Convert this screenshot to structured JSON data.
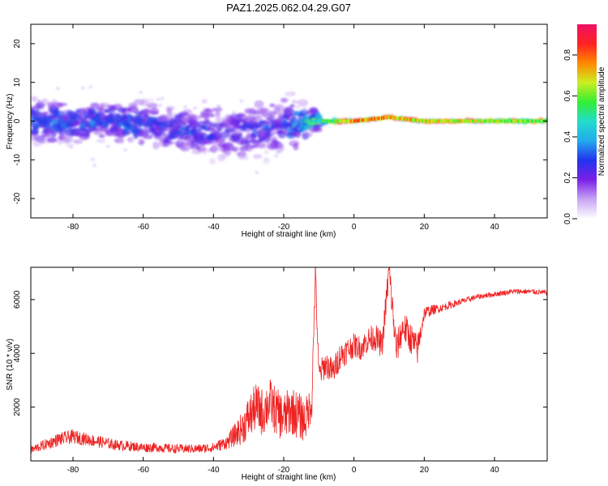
{
  "title": "PAZ1.2025.062.04.29.G07",
  "colors": {
    "snr_line": "#ee2222",
    "colormap": [
      "#ffffff",
      "#c7a5f4",
      "#7b1fe8",
      "#2233ee",
      "#22aaee",
      "#22ddcc",
      "#33ee33",
      "#ccee22",
      "#ff8800",
      "#ff2222",
      "#ee1166"
    ]
  },
  "chart_data": [
    {
      "type": "heatmap",
      "xlabel": "Height of straight line (km)",
      "ylabel": "Frequency (Hz)",
      "xlim": [
        -92,
        55
      ],
      "ylim": [
        -25,
        25
      ],
      "xticks": [
        -80,
        -60,
        -40,
        -20,
        0,
        20,
        40
      ],
      "yticks": [
        -20,
        -10,
        0,
        10,
        20
      ],
      "grid": false,
      "colorbar": {
        "label": "Normalized spectral amplitude",
        "range": [
          0.0,
          0.95
        ],
        "ticks": [
          0.0,
          0.2,
          0.4,
          0.6,
          0.8
        ]
      },
      "ridge": {
        "description_points": [
          {
            "x": -92,
            "center": 0,
            "spread": 4,
            "amp": 0.28
          },
          {
            "x": -70,
            "center": 0,
            "spread": 3,
            "amp": 0.3
          },
          {
            "x": -50,
            "center": -2,
            "spread": 4,
            "amp": 0.25
          },
          {
            "x": -35,
            "center": -3,
            "spread": 5,
            "amp": 0.22
          },
          {
            "x": -20,
            "center": -1,
            "spread": 5,
            "amp": 0.24
          },
          {
            "x": -12,
            "center": 0,
            "spread": 2,
            "amp": 0.45
          },
          {
            "x": 0,
            "center": 0,
            "spread": 1,
            "amp": 0.8
          },
          {
            "x": 10,
            "center": 1,
            "spread": 1,
            "amp": 0.75
          },
          {
            "x": 20,
            "center": 0,
            "spread": 1,
            "amp": 0.7
          },
          {
            "x": 55,
            "center": 0,
            "spread": 1,
            "amp": 0.62
          }
        ]
      }
    },
    {
      "type": "line",
      "xlabel": "Height of straight line (km)",
      "ylabel": "SNR (10 * v/v)",
      "xlim": [
        -92,
        55
      ],
      "ylim": [
        0,
        7200
      ],
      "xticks": [
        -80,
        -60,
        -40,
        -20,
        0,
        20,
        40
      ],
      "yticks": [
        2000,
        4000,
        6000
      ],
      "grid": false,
      "series": [
        {
          "x": [
            -92,
            -88,
            -84,
            -80,
            -76,
            -72,
            -68,
            -64,
            -60,
            -56,
            -52,
            -48,
            -44,
            -40,
            -36,
            -32,
            -30,
            -28,
            -26,
            -24,
            -22,
            -20,
            -18,
            -16,
            -14,
            -12,
            -11,
            -10,
            -8,
            -6,
            -4,
            -2,
            0,
            2,
            4,
            6,
            8,
            10,
            12,
            14,
            16,
            18,
            20,
            22,
            25,
            30,
            35,
            40,
            45,
            50,
            55
          ],
          "y": [
            400,
            600,
            800,
            900,
            800,
            700,
            600,
            550,
            500,
            500,
            450,
            450,
            450,
            500,
            700,
            1200,
            1600,
            2000,
            1800,
            2200,
            1800,
            1600,
            1900,
            1700,
            1500,
            2200,
            7000,
            3200,
            3600,
            3300,
            3900,
            4100,
            4300,
            4200,
            4500,
            4600,
            4300,
            7100,
            4100,
            5000,
            4600,
            4100,
            5500,
            5600,
            5700,
            5900,
            6100,
            6200,
            6300,
            6300,
            6250
          ],
          "noise": [
            150,
            200,
            250,
            260,
            240,
            220,
            200,
            190,
            180,
            180,
            170,
            170,
            170,
            180,
            260,
            600,
            800,
            900,
            900,
            900,
            900,
            900,
            900,
            900,
            800,
            700,
            600,
            500,
            500,
            500,
            500,
            500,
            450,
            450,
            500,
            500,
            500,
            600,
            600,
            600,
            600,
            600,
            250,
            200,
            150,
            120,
            100,
            100,
            100,
            100,
            100
          ]
        }
      ]
    }
  ]
}
